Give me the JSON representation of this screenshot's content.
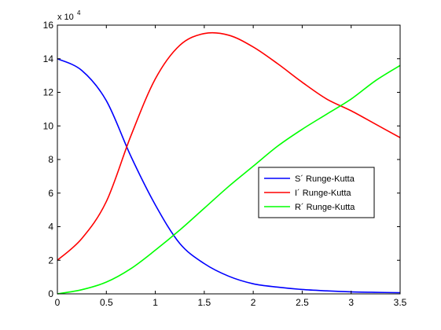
{
  "chart_data": {
    "type": "line",
    "title": "",
    "xlabel": "",
    "ylabel": "",
    "xlim": [
      0,
      3.5
    ],
    "ylim": [
      0,
      160000
    ],
    "x_ticks": [
      0,
      0.5,
      1,
      1.5,
      2,
      2.5,
      3,
      3.5
    ],
    "x_tick_labels": [
      "0",
      "0.5",
      "1",
      "1.5",
      "2",
      "2.5",
      "3",
      "3.5"
    ],
    "y_ticks": [
      0,
      20000,
      40000,
      60000,
      80000,
      100000,
      120000,
      140000,
      160000
    ],
    "y_tick_labels": [
      "0",
      "2",
      "4",
      "6",
      "8",
      "10",
      "12",
      "14",
      "16"
    ],
    "y_exponent": {
      "base": "x 10",
      "power": "4"
    },
    "grid": false,
    "legend_position": "right-center",
    "x": [
      0,
      0.25,
      0.5,
      0.75,
      1.0,
      1.25,
      1.5,
      1.75,
      2.0,
      2.25,
      2.5,
      2.75,
      3.0,
      3.25,
      3.5
    ],
    "series": [
      {
        "name": "S´ Runge-Kutta",
        "color": "#0000ff",
        "values": [
          140000,
          133000,
          115000,
          82000,
          53000,
          30000,
          18000,
          10500,
          6000,
          4000,
          2600,
          1800,
          1200,
          900,
          700
        ]
      },
      {
        "name": "I´ Runge-Kutta",
        "color": "#ff0000",
        "values": [
          20000,
          33000,
          55000,
          94000,
          128000,
          148000,
          155000,
          154000,
          147000,
          137000,
          126000,
          116000,
          109000,
          101000,
          93000
        ]
      },
      {
        "name": "R´ Runge-Kutta",
        "color": "#00ff00",
        "values": [
          0,
          2500,
          7000,
          15000,
          26000,
          38000,
          51000,
          64000,
          76000,
          88000,
          98000,
          107000,
          116000,
          127000,
          136000
        ]
      }
    ]
  }
}
